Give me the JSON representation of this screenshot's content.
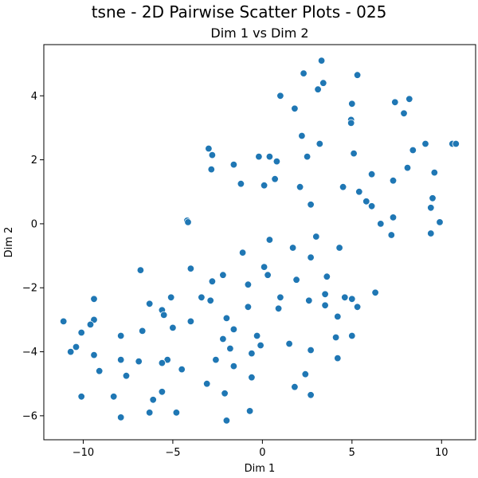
{
  "figure": {
    "suptitle": "tsne - 2D Pairwise Scatter Plots - 025"
  },
  "chart_data": {
    "type": "scatter",
    "title": "Dim 1 vs Dim 2",
    "xlabel": "Dim 1",
    "ylabel": "Dim 2",
    "xlim": [
      -12.2,
      11.9
    ],
    "ylim": [
      -6.75,
      5.6
    ],
    "xticks": [
      -10,
      -5,
      0,
      5,
      10
    ],
    "yticks": [
      -6,
      -4,
      -2,
      0,
      2,
      4
    ],
    "grid": false,
    "color": "#1f77b4",
    "points": [
      [
        3.3,
        5.1
      ],
      [
        2.3,
        4.7
      ],
      [
        5.3,
        4.65
      ],
      [
        3.4,
        4.4
      ],
      [
        3.1,
        4.2
      ],
      [
        1.0,
        4.0
      ],
      [
        5.0,
        3.75
      ],
      [
        7.4,
        3.8
      ],
      [
        8.2,
        3.9
      ],
      [
        1.8,
        3.6
      ],
      [
        7.9,
        3.45
      ],
      [
        4.95,
        3.25
      ],
      [
        4.95,
        3.15
      ],
      [
        2.2,
        2.75
      ],
      [
        9.1,
        2.5
      ],
      [
        10.6,
        2.5
      ],
      [
        10.8,
        2.5
      ],
      [
        3.2,
        2.5
      ],
      [
        8.4,
        2.3
      ],
      [
        -3.0,
        2.35
      ],
      [
        -2.8,
        2.15
      ],
      [
        -0.2,
        2.1
      ],
      [
        0.4,
        2.1
      ],
      [
        2.5,
        2.1
      ],
      [
        5.1,
        2.2
      ],
      [
        0.8,
        1.95
      ],
      [
        -1.6,
        1.85
      ],
      [
        -2.85,
        1.7
      ],
      [
        8.1,
        1.75
      ],
      [
        6.1,
        1.55
      ],
      [
        9.6,
        1.6
      ],
      [
        0.7,
        1.4
      ],
      [
        7.3,
        1.35
      ],
      [
        -1.2,
        1.25
      ],
      [
        0.1,
        1.2
      ],
      [
        2.1,
        1.15
      ],
      [
        4.5,
        1.15
      ],
      [
        5.4,
        1.0
      ],
      [
        5.8,
        0.7
      ],
      [
        9.5,
        0.8
      ],
      [
        6.1,
        0.55
      ],
      [
        2.7,
        0.6
      ],
      [
        9.4,
        0.5
      ],
      [
        7.3,
        0.2
      ],
      [
        -4.2,
        0.1
      ],
      [
        -4.15,
        0.05
      ],
      [
        6.6,
        0.0
      ],
      [
        9.9,
        0.05
      ],
      [
        7.2,
        -0.35
      ],
      [
        9.4,
        -0.3
      ],
      [
        3.0,
        -0.4
      ],
      [
        0.4,
        -0.5
      ],
      [
        4.3,
        -0.75
      ],
      [
        1.7,
        -0.75
      ],
      [
        -1.1,
        -0.9
      ],
      [
        2.7,
        -1.05
      ],
      [
        0.1,
        -1.35
      ],
      [
        -4.0,
        -1.4
      ],
      [
        -6.8,
        -1.45
      ],
      [
        0.3,
        -1.6
      ],
      [
        -2.2,
        -1.6
      ],
      [
        3.6,
        -1.65
      ],
      [
        1.9,
        -1.75
      ],
      [
        -2.8,
        -1.8
      ],
      [
        -0.8,
        -1.9
      ],
      [
        6.3,
        -2.15
      ],
      [
        3.5,
        -2.2
      ],
      [
        1.0,
        -2.3
      ],
      [
        -3.4,
        -2.3
      ],
      [
        -5.1,
        -2.3
      ],
      [
        4.6,
        -2.3
      ],
      [
        5.0,
        -2.35
      ],
      [
        -9.4,
        -2.35
      ],
      [
        -2.9,
        -2.4
      ],
      [
        2.6,
        -2.4
      ],
      [
        -6.3,
        -2.5
      ],
      [
        3.5,
        -2.55
      ],
      [
        5.3,
        -2.6
      ],
      [
        -0.8,
        -2.6
      ],
      [
        0.9,
        -2.65
      ],
      [
        -5.6,
        -2.7
      ],
      [
        -5.5,
        -2.85
      ],
      [
        4.2,
        -2.9
      ],
      [
        -2.0,
        -2.95
      ],
      [
        -9.4,
        -3.0
      ],
      [
        -11.1,
        -3.05
      ],
      [
        -4.0,
        -3.05
      ],
      [
        -9.6,
        -3.15
      ],
      [
        -5.0,
        -3.25
      ],
      [
        -1.6,
        -3.3
      ],
      [
        -10.1,
        -3.4
      ],
      [
        -6.7,
        -3.35
      ],
      [
        -0.3,
        -3.5
      ],
      [
        -7.9,
        -3.5
      ],
      [
        5.0,
        -3.5
      ],
      [
        4.1,
        -3.55
      ],
      [
        -2.2,
        -3.6
      ],
      [
        1.5,
        -3.75
      ],
      [
        -0.1,
        -3.8
      ],
      [
        -10.4,
        -3.85
      ],
      [
        -1.8,
        -3.9
      ],
      [
        2.7,
        -3.95
      ],
      [
        -10.7,
        -4.0
      ],
      [
        -0.6,
        -4.05
      ],
      [
        -9.4,
        -4.1
      ],
      [
        4.2,
        -4.2
      ],
      [
        -7.9,
        -4.25
      ],
      [
        -5.3,
        -4.25
      ],
      [
        -2.6,
        -4.25
      ],
      [
        -6.9,
        -4.3
      ],
      [
        -5.6,
        -4.35
      ],
      [
        -1.6,
        -4.45
      ],
      [
        -4.5,
        -4.55
      ],
      [
        -9.1,
        -4.6
      ],
      [
        2.4,
        -4.7
      ],
      [
        -7.6,
        -4.75
      ],
      [
        -0.6,
        -4.8
      ],
      [
        -3.1,
        -5.0
      ],
      [
        1.8,
        -5.1
      ],
      [
        -5.6,
        -5.25
      ],
      [
        -2.1,
        -5.3
      ],
      [
        2.7,
        -5.35
      ],
      [
        -10.1,
        -5.4
      ],
      [
        -8.3,
        -5.4
      ],
      [
        -6.1,
        -5.5
      ],
      [
        -0.7,
        -5.85
      ],
      [
        -4.8,
        -5.9
      ],
      [
        -6.3,
        -5.9
      ],
      [
        -7.9,
        -6.05
      ],
      [
        -2.0,
        -6.15
      ]
    ]
  }
}
